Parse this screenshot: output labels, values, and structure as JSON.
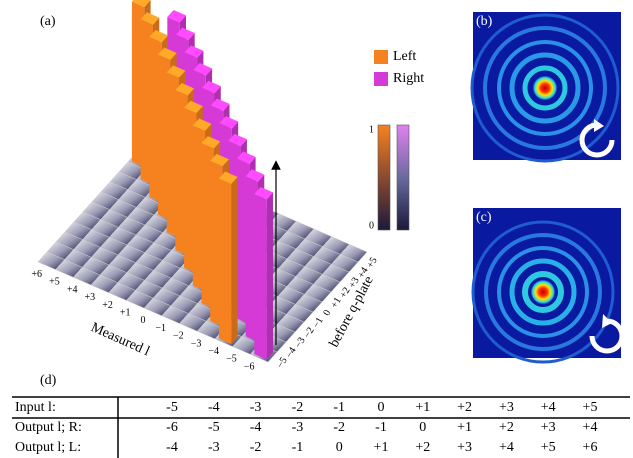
{
  "panels": {
    "a": "(a)",
    "b": "(b)",
    "c": "(c)",
    "d": "(d)"
  },
  "legend": [
    {
      "name": "Left",
      "color": "#f5821f"
    },
    {
      "name": "Right",
      "color": "#d63ad6"
    }
  ],
  "colorbar_ticks": [
    "1",
    "0"
  ],
  "axes": {
    "measured_label": "Measured l",
    "measured_ticks": [
      "+6",
      "+5",
      "+4",
      "+3",
      "+2",
      "+1",
      "0",
      "−1",
      "−2",
      "−3",
      "−4",
      "−5",
      "−6"
    ],
    "input_label": "before q-plate",
    "input_ticks": [
      "−5",
      "−4",
      "−3",
      "−2",
      "−1",
      "0",
      "+1",
      "+2",
      "+3",
      "+4",
      "+5"
    ]
  },
  "table": {
    "rows": [
      [
        "Input l:",
        "-5",
        "-4",
        "-3",
        "-2",
        "-1",
        "0",
        "+1",
        "+2",
        "+3",
        "+4",
        "+5"
      ],
      [
        "Output l; R:",
        "-6",
        "-5",
        "-4",
        "-3",
        "-2",
        "-1",
        "0",
        "+1",
        "+2",
        "+3",
        "+4"
      ],
      [
        "Output l; L:",
        "-4",
        "-3",
        "-2",
        "-1",
        "0",
        "+1",
        "+2",
        "+3",
        "+4",
        "+5",
        "+6"
      ]
    ]
  }
}
